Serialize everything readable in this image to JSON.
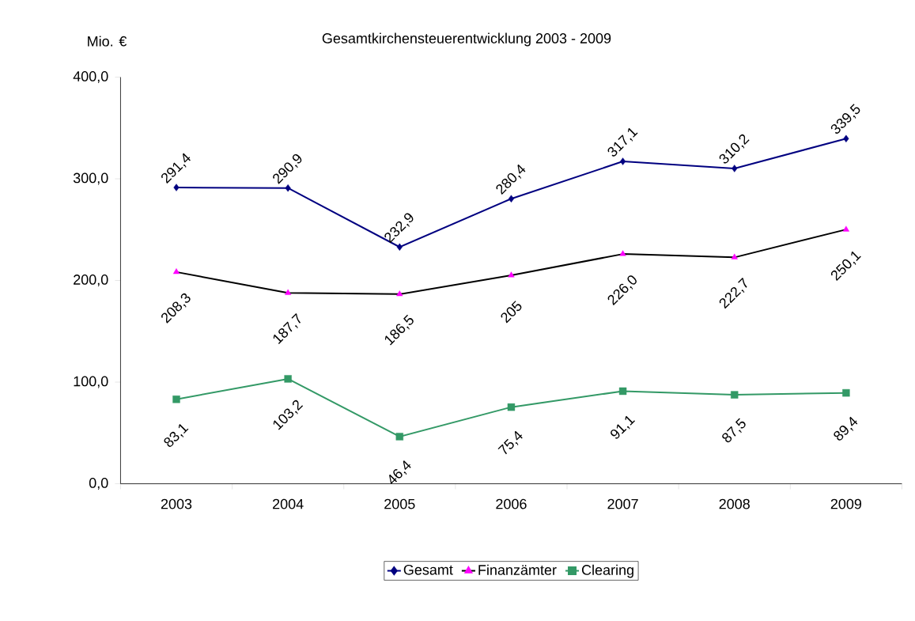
{
  "chart_data": {
    "type": "line",
    "title": "Gesamtkirchensteuerentwicklung 2003 - 2009",
    "ylabel": "Mio. €",
    "categories": [
      "2003",
      "2004",
      "2005",
      "2006",
      "2007",
      "2008",
      "2009"
    ],
    "ylim": [
      0,
      400
    ],
    "yticks": [
      {
        "value": 0,
        "label": "0,0"
      },
      {
        "value": 100,
        "label": "100,0"
      },
      {
        "value": 200,
        "label": "200,0"
      },
      {
        "value": 300,
        "label": "300,0"
      },
      {
        "value": 400,
        "label": "400,0"
      }
    ],
    "grid": false,
    "legend": "bottom",
    "series": [
      {
        "name": "Gesamt",
        "color": "#000080",
        "marker": "diamond",
        "values": [
          291.4,
          290.9,
          232.9,
          280.4,
          317.1,
          310.2,
          339.5
        ],
        "value_labels": [
          "291,4",
          "290,9",
          "232,9",
          "280,4",
          "317,1",
          "310,2",
          "339,5"
        ]
      },
      {
        "name": "Finanzämter",
        "color": "#000000",
        "colors": [
          "#ff00ff",
          "#ff00ff",
          "#ff00ff",
          "#ff00ff",
          "#ff00ff",
          "#ff00ff",
          "#ff00ff"
        ],
        "marker": "triangle",
        "values": [
          208.3,
          187.7,
          186.5,
          205,
          226.0,
          222.7,
          250.1
        ],
        "value_labels": [
          "208,3",
          "187,7",
          "186,5",
          "205",
          "226,0",
          "222,7",
          "250,1"
        ]
      },
      {
        "name": "Clearing",
        "color": "#339966",
        "marker": "square",
        "values": [
          83.1,
          103.2,
          46.4,
          75.4,
          91.1,
          87.5,
          89.4
        ],
        "value_labels": [
          "83,1",
          "103,2",
          "46,4",
          "75,4",
          "91,1",
          "87,5",
          "89,4"
        ]
      }
    ]
  }
}
